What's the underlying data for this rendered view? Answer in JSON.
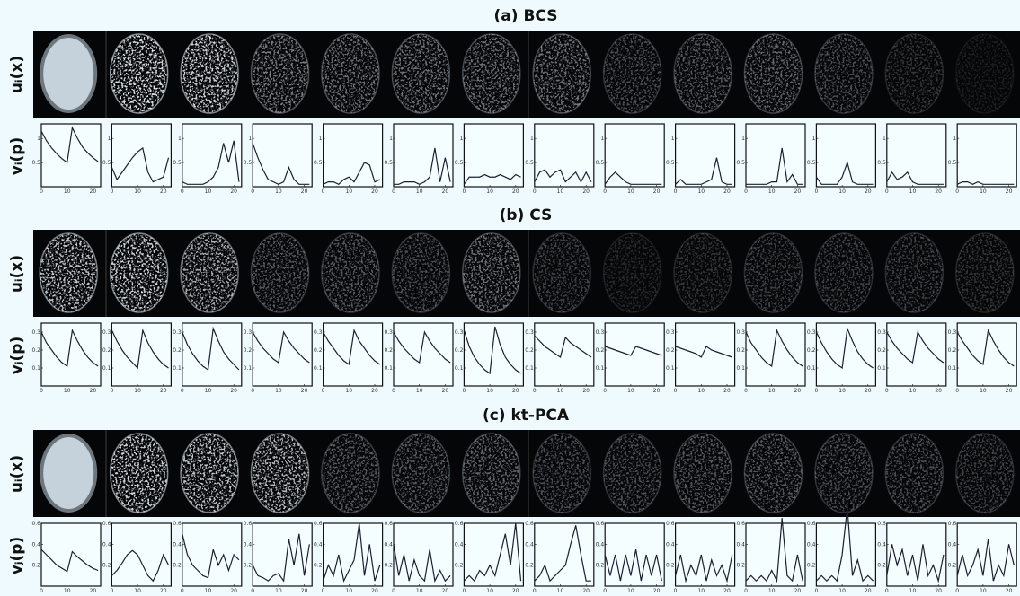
{
  "panels": [
    {
      "title": "(a) BCS",
      "image_label": "uᵢ(x)",
      "plot_label": "vᵢ(p)",
      "x": [
        0,
        2,
        4,
        6,
        8,
        10,
        12,
        14,
        16,
        18,
        20,
        22
      ],
      "xlim": [
        0,
        23
      ],
      "xticks": [
        0,
        10,
        20
      ],
      "ylim": [
        0,
        1.3
      ],
      "yticks": [
        0.5,
        1
      ],
      "plots": [
        [
          1.15,
          0.95,
          0.8,
          0.68,
          0.58,
          0.5,
          1.22,
          1.0,
          0.82,
          0.7,
          0.6,
          0.52
        ],
        [
          0.4,
          0.15,
          0.3,
          0.45,
          0.6,
          0.72,
          0.8,
          0.3,
          0.1,
          0.15,
          0.2,
          0.6
        ],
        [
          0.1,
          0.05,
          0.05,
          0.05,
          0.05,
          0.1,
          0.2,
          0.4,
          0.9,
          0.5,
          0.95,
          0.1
        ],
        [
          0.9,
          0.6,
          0.35,
          0.15,
          0.1,
          0.05,
          0.1,
          0.4,
          0.15,
          0.05,
          0.05,
          0.05
        ],
        [
          0.05,
          0.1,
          0.1,
          0.05,
          0.15,
          0.2,
          0.1,
          0.3,
          0.5,
          0.45,
          0.1,
          0.15
        ],
        [
          0.05,
          0.05,
          0.1,
          0.1,
          0.1,
          0.05,
          0.1,
          0.2,
          0.8,
          0.1,
          0.6,
          0.1
        ],
        [
          0.05,
          0.2,
          0.2,
          0.2,
          0.25,
          0.2,
          0.2,
          0.25,
          0.2,
          0.15,
          0.25,
          0.2
        ],
        [
          0.1,
          0.3,
          0.35,
          0.2,
          0.3,
          0.35,
          0.1,
          0.2,
          0.3,
          0.1,
          0.3,
          0.1
        ],
        [
          0.05,
          0.2,
          0.3,
          0.2,
          0.1,
          0.05,
          0.05,
          0.05,
          0.05,
          0.05,
          0.05,
          0.05
        ],
        [
          0.05,
          0.15,
          0.05,
          0.05,
          0.05,
          0.05,
          0.1,
          0.15,
          0.6,
          0.1,
          0.05,
          0.05
        ],
        [
          0.05,
          0.05,
          0.05,
          0.05,
          0.05,
          0.1,
          0.1,
          0.8,
          0.1,
          0.25,
          0.05,
          0.05
        ],
        [
          0.2,
          0.05,
          0.05,
          0.05,
          0.05,
          0.2,
          0.5,
          0.1,
          0.05,
          0.05,
          0.05,
          0.05
        ],
        [
          0.1,
          0.3,
          0.15,
          0.2,
          0.3,
          0.1,
          0.05,
          0.05,
          0.05,
          0.05,
          0.05,
          0.05
        ],
        [
          0.05,
          0.1,
          0.1,
          0.05,
          0.1,
          0.05,
          0.05,
          0.05,
          0.05,
          0.05,
          0.05,
          0.05
        ]
      ]
    },
    {
      "title": "(b) CS",
      "image_label": "uᵢ(x)",
      "plot_label": "vⱼ(p)",
      "x": [
        0,
        2,
        4,
        6,
        8,
        10,
        12,
        14,
        16,
        18,
        20,
        22
      ],
      "xlim": [
        0,
        23
      ],
      "xticks": [
        0,
        10,
        20
      ],
      "ylim": [
        0,
        0.35
      ],
      "yticks": [
        0.1,
        0.2,
        0.3
      ],
      "plots": [
        [
          0.3,
          0.24,
          0.2,
          0.16,
          0.13,
          0.11,
          0.31,
          0.25,
          0.2,
          0.16,
          0.13,
          0.11
        ],
        [
          0.31,
          0.25,
          0.2,
          0.16,
          0.13,
          0.1,
          0.31,
          0.24,
          0.19,
          0.15,
          0.12,
          0.1
        ],
        [
          0.3,
          0.23,
          0.18,
          0.14,
          0.11,
          0.09,
          0.32,
          0.25,
          0.19,
          0.15,
          0.12,
          0.09
        ],
        [
          0.3,
          0.25,
          0.21,
          0.18,
          0.15,
          0.13,
          0.3,
          0.25,
          0.21,
          0.18,
          0.15,
          0.13
        ],
        [
          0.3,
          0.25,
          0.21,
          0.17,
          0.14,
          0.12,
          0.31,
          0.25,
          0.21,
          0.17,
          0.14,
          0.12
        ],
        [
          0.3,
          0.25,
          0.21,
          0.18,
          0.15,
          0.13,
          0.3,
          0.25,
          0.21,
          0.18,
          0.15,
          0.13
        ],
        [
          0.31,
          0.22,
          0.16,
          0.12,
          0.09,
          0.07,
          0.33,
          0.23,
          0.16,
          0.12,
          0.09,
          0.07
        ],
        [
          0.28,
          0.25,
          0.22,
          0.2,
          0.18,
          0.16,
          0.27,
          0.24,
          0.22,
          0.2,
          0.18,
          0.16
        ],
        [
          0.22,
          0.21,
          0.2,
          0.19,
          0.18,
          0.17,
          0.22,
          0.21,
          0.2,
          0.19,
          0.18,
          0.17
        ],
        [
          0.22,
          0.21,
          0.2,
          0.19,
          0.18,
          0.16,
          0.22,
          0.2,
          0.19,
          0.18,
          0.17,
          0.16
        ],
        [
          0.3,
          0.24,
          0.2,
          0.16,
          0.13,
          0.11,
          0.31,
          0.25,
          0.2,
          0.16,
          0.13,
          0.11
        ],
        [
          0.3,
          0.24,
          0.19,
          0.15,
          0.12,
          0.1,
          0.32,
          0.25,
          0.19,
          0.15,
          0.12,
          0.1
        ],
        [
          0.3,
          0.25,
          0.21,
          0.18,
          0.15,
          0.13,
          0.3,
          0.25,
          0.21,
          0.18,
          0.15,
          0.13
        ],
        [
          0.3,
          0.25,
          0.21,
          0.17,
          0.14,
          0.12,
          0.31,
          0.25,
          0.2,
          0.16,
          0.13,
          0.11
        ]
      ]
    },
    {
      "title": "(c) kt-PCA",
      "image_label": "uᵢ(x)",
      "plot_label": "vⱼ(p)",
      "x": [
        0,
        2,
        4,
        6,
        8,
        10,
        12,
        14,
        16,
        18,
        20,
        22
      ],
      "xlim": [
        0,
        23
      ],
      "xticks": [
        0,
        10,
        20
      ],
      "ylim": [
        0,
        0.6
      ],
      "yticks": [
        0.2,
        0.4,
        0.6
      ],
      "plots": [
        [
          0.35,
          0.3,
          0.25,
          0.2,
          0.17,
          0.14,
          0.33,
          0.28,
          0.24,
          0.2,
          0.17,
          0.15
        ],
        [
          0.1,
          0.15,
          0.22,
          0.3,
          0.34,
          0.3,
          0.2,
          0.1,
          0.05,
          0.15,
          0.3,
          0.2
        ],
        [
          0.5,
          0.3,
          0.2,
          0.15,
          0.1,
          0.08,
          0.35,
          0.2,
          0.3,
          0.15,
          0.3,
          0.25
        ],
        [
          0.2,
          0.1,
          0.08,
          0.05,
          0.1,
          0.12,
          0.05,
          0.45,
          0.2,
          0.5,
          0.1,
          0.4
        ],
        [
          0.05,
          0.2,
          0.1,
          0.3,
          0.05,
          0.15,
          0.25,
          0.6,
          0.1,
          0.4,
          0.05,
          0.2
        ],
        [
          0.4,
          0.1,
          0.3,
          0.05,
          0.25,
          0.1,
          0.05,
          0.35,
          0.05,
          0.15,
          0.05,
          0.1
        ],
        [
          0.05,
          0.1,
          0.05,
          0.15,
          0.1,
          0.2,
          0.1,
          0.3,
          0.5,
          0.2,
          0.6,
          0.05
        ],
        [
          0.05,
          0.1,
          0.2,
          0.05,
          0.1,
          0.15,
          0.2,
          0.4,
          0.58,
          0.3,
          0.05,
          0.05
        ],
        [
          0.3,
          0.1,
          0.3,
          0.05,
          0.3,
          0.1,
          0.35,
          0.05,
          0.3,
          0.1,
          0.3,
          0.05
        ],
        [
          0.1,
          0.3,
          0.05,
          0.2,
          0.1,
          0.3,
          0.05,
          0.25,
          0.1,
          0.2,
          0.05,
          0.3
        ],
        [
          0.05,
          0.1,
          0.05,
          0.1,
          0.05,
          0.15,
          0.05,
          0.65,
          0.1,
          0.05,
          0.3,
          0.05
        ],
        [
          0.05,
          0.1,
          0.05,
          0.1,
          0.05,
          0.3,
          0.75,
          0.1,
          0.25,
          0.05,
          0.1,
          0.05
        ],
        [
          0.1,
          0.4,
          0.2,
          0.35,
          0.1,
          0.3,
          0.05,
          0.4,
          0.1,
          0.2,
          0.05,
          0.3
        ],
        [
          0.1,
          0.3,
          0.1,
          0.2,
          0.35,
          0.1,
          0.45,
          0.05,
          0.2,
          0.1,
          0.4,
          0.2
        ]
      ]
    }
  ]
}
